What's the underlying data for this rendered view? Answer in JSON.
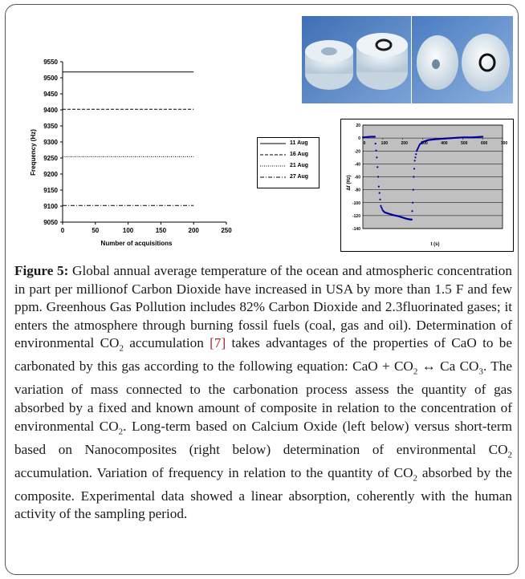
{
  "figure": {
    "caption_label": "Figure 5:",
    "caption_segments": [
      " Global annual average temperature of the ocean and atmospheric concentration in part per millionof Carbon Dioxide have increased in USA by more than 1.5 F and few ppm. Greenhous Gas Pollution includes 82% Carbon Dioxide and 2.3fluorinated gases; it enters the atmosphere through burning fossil fuels (coal, gas and oil). Determination of environmental CO",
      "2",
      " accumulation ",
      "[7]",
      " takes advantages of the properties of CaO to be carbonated by this gas according to the following equation: CaO + CO",
      "2",
      " ↔ Ca CO",
      "3",
      ". The variation of mass connected to the carbonation process assess the quantity of gas absorbed by a fixed and known amount of composite in relation to the concentration of environmental CO",
      "2",
      ". Long-term based on Calcium Oxide (left below) versus short-term based on Nanocomposites (right below) determination of environmental CO",
      "2",
      " accumulation. Variation of frequency in relation to the quantity of CO",
      "2",
      " absorbed by the composite. Experimental data showed a linear absorption, coherently with the human activity of the sampling period."
    ],
    "citation_color": "#a52a2a"
  },
  "chart_data": [
    {
      "type": "line",
      "xlabel": "Number of acquisitions",
      "ylabel": "Frequency (Hz)",
      "xlim": [
        0,
        250
      ],
      "ylim": [
        9050,
        9550
      ],
      "xticks": [
        "0",
        "50",
        "100",
        "150",
        "200",
        "250"
      ],
      "yticks": [
        "9050",
        "9100",
        "9150",
        "9200",
        "9250",
        "9300",
        "9350",
        "9400",
        "9450",
        "9500",
        "9550"
      ],
      "legend": "right",
      "series": [
        {
          "name": "11 Aug",
          "style": "solid",
          "x": [
            0,
            200
          ],
          "values": [
            9518,
            9518
          ]
        },
        {
          "name": "16 Aug",
          "style": "dashed",
          "x": [
            0,
            200
          ],
          "values": [
            9402,
            9402
          ]
        },
        {
          "name": "21 Aug",
          "style": "dotted",
          "x": [
            0,
            200
          ],
          "values": [
            9254,
            9254
          ]
        },
        {
          "name": "27 Aug",
          "style": "dashdot",
          "x": [
            0,
            200
          ],
          "values": [
            9102,
            9102
          ]
        }
      ]
    },
    {
      "type": "scatter",
      "xlabel": "t (s)",
      "ylabel": "Δf (Hz)",
      "xlim": [
        0,
        700
      ],
      "ylim": [
        -140,
        20
      ],
      "xticks": [
        "0",
        "100",
        "200",
        "300",
        "400",
        "500",
        "600",
        "700"
      ],
      "yticks": [
        "20",
        "0",
        "-20",
        "-40",
        "-60",
        "-80",
        "-100",
        "-120",
        "-140"
      ],
      "grid": true,
      "background": "#c0c0c0",
      "color": "#0000a0",
      "series": [
        {
          "x": [
            0,
            40,
            60,
            70,
            80,
            90,
            100,
            110,
            130,
            150,
            180,
            200,
            220,
            240,
            245,
            250,
            255,
            260,
            270,
            285,
            300,
            330,
            360,
            400,
            450,
            500,
            550,
            600
          ],
          "values": [
            1,
            2,
            2,
            -30,
            -75,
            -105,
            -112,
            -115,
            -117,
            -119,
            -121,
            -123,
            -125,
            -126,
            -126,
            -100,
            -60,
            -35,
            -20,
            -10,
            -6,
            -3,
            -2,
            -1,
            0,
            1,
            1,
            2
          ]
        }
      ]
    }
  ],
  "photos": [
    {
      "name": "calcium-oxide-samples-photo",
      "bg": "#4f7fc0"
    },
    {
      "name": "nanocomposite-samples-photo",
      "bg": "#5a88c8"
    }
  ]
}
